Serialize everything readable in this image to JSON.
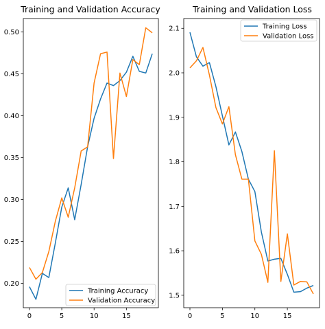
{
  "chart_data": [
    {
      "type": "line",
      "title": "Training and Validation Accuracy",
      "xlabel": "",
      "ylabel": "",
      "xlim": [
        -0.95,
        19.95
      ],
      "ylim": [
        0.171,
        0.516
      ],
      "x_ticks": [
        0,
        5,
        10,
        15
      ],
      "x_tick_labels": [
        "0",
        "5",
        "10",
        "15"
      ],
      "y_ticks": [
        0.2,
        0.25,
        0.3,
        0.35,
        0.4,
        0.45,
        0.5
      ],
      "y_tick_labels": [
        "0.20",
        "0.25",
        "0.30",
        "0.35",
        "0.40",
        "0.45",
        "0.50"
      ],
      "grid": false,
      "legend_position": "bottom-right",
      "x": [
        0,
        1,
        2,
        3,
        4,
        5,
        6,
        7,
        8,
        9,
        10,
        11,
        12,
        13,
        14,
        15,
        16,
        17,
        18,
        19
      ],
      "series": [
        {
          "name": "Training Accuracy",
          "color": "#1f77b4",
          "values": [
            0.196,
            0.181,
            0.212,
            0.207,
            0.248,
            0.291,
            0.314,
            0.276,
            0.318,
            0.363,
            0.397,
            0.42,
            0.439,
            0.436,
            0.442,
            0.452,
            0.471,
            0.453,
            0.451,
            0.474
          ]
        },
        {
          "name": "Validation Accuracy",
          "color": "#ff7f0e",
          "values": [
            0.219,
            0.205,
            0.213,
            0.238,
            0.274,
            0.302,
            0.279,
            0.314,
            0.358,
            0.363,
            0.439,
            0.474,
            0.476,
            0.349,
            0.451,
            0.423,
            0.467,
            0.461,
            0.505,
            0.499
          ]
        }
      ]
    },
    {
      "type": "line",
      "title": "Training and Validation Loss",
      "xlabel": "",
      "ylabel": "",
      "xlim": [
        -0.95,
        19.95
      ],
      "ylim": [
        1.472,
        2.122
      ],
      "x_ticks": [
        0,
        5,
        10,
        15
      ],
      "x_tick_labels": [
        "0",
        "5",
        "10",
        "15"
      ],
      "y_ticks": [
        1.5,
        1.6,
        1.7,
        1.8,
        1.9,
        2.0,
        2.1
      ],
      "y_tick_labels": [
        "1.5",
        "1.6",
        "1.7",
        "1.8",
        "1.9",
        "2.0",
        "2.1"
      ],
      "grid": false,
      "legend_position": "top-right",
      "x": [
        0,
        1,
        2,
        3,
        4,
        5,
        6,
        7,
        8,
        9,
        10,
        11,
        12,
        13,
        14,
        15,
        16,
        17,
        18,
        19
      ],
      "series": [
        {
          "name": "Training Loss",
          "color": "#1f77b4",
          "values": [
            2.091,
            2.036,
            2.015,
            2.023,
            1.969,
            1.903,
            1.838,
            1.867,
            1.823,
            1.761,
            1.733,
            1.642,
            1.577,
            1.581,
            1.583,
            1.547,
            1.507,
            1.508,
            1.516,
            1.522
          ]
        },
        {
          "name": "Validation Loss",
          "color": "#ff7f0e",
          "values": [
            2.011,
            2.027,
            2.057,
            1.995,
            1.922,
            1.885,
            1.924,
            1.816,
            1.761,
            1.761,
            1.622,
            1.592,
            1.529,
            1.825,
            1.531,
            1.638,
            1.523,
            1.531,
            1.53,
            1.503
          ]
        }
      ]
    }
  ]
}
